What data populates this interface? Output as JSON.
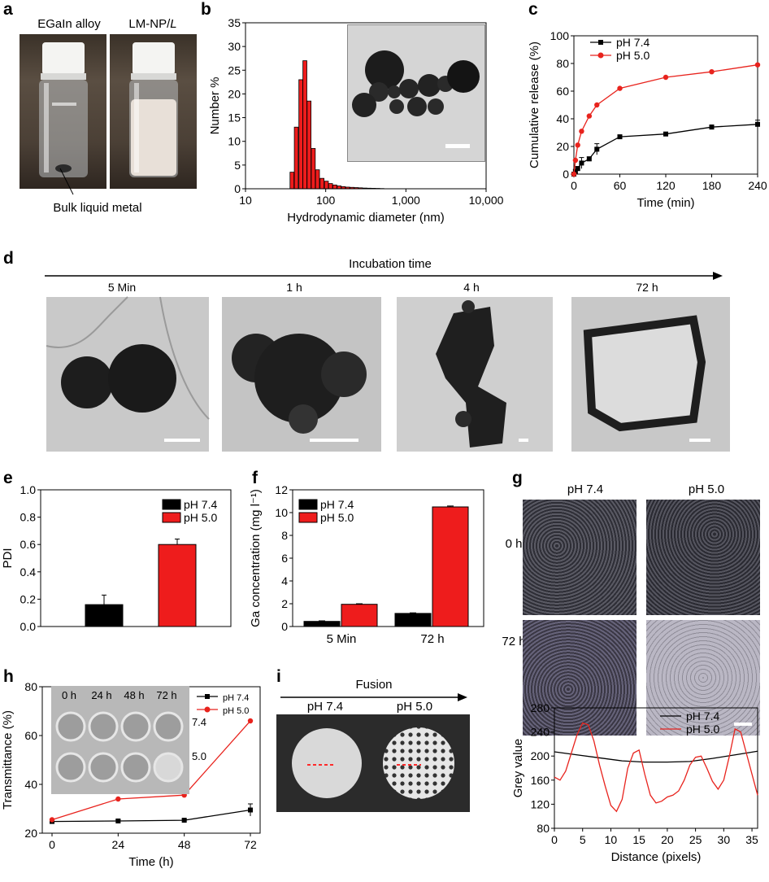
{
  "panel_letters": {
    "a": "a",
    "b": "b",
    "c": "c",
    "d": "d",
    "e": "e",
    "f": "f",
    "g": "g",
    "h": "h",
    "i": "i"
  },
  "panel_a": {
    "left_label": "EGaIn alloy",
    "right_label": "LM-NP/",
    "right_label_italic": "L",
    "callout": "Bulk liquid metal"
  },
  "panel_d": {
    "axis_title": "Incubation time",
    "times": [
      "5 Min",
      "1 h",
      "4 h",
      "72 h"
    ]
  },
  "panel_g": {
    "col_labels": [
      "pH 7.4",
      "pH 5.0"
    ],
    "row_labels": [
      "0 h",
      "72 h"
    ]
  },
  "panel_i": {
    "title": "Fusion",
    "labels": [
      "pH 7.4",
      "pH 5.0"
    ]
  },
  "panel_h": {
    "inset_times": [
      "0 h",
      "24 h",
      "48 h",
      "72 h"
    ],
    "inset_rows": [
      "7.4",
      "5.0"
    ]
  },
  "colors": {
    "ph74": "#000000",
    "ph50": "#e8231d",
    "bar_red": "#ee1c1c"
  },
  "chart_data": [
    {
      "id": "b",
      "type": "bar",
      "xlabel": "Hydrodynamic diameter (nm)",
      "ylabel": "Number %",
      "x_scale": "log",
      "xlim": [
        10,
        10000
      ],
      "ylim": [
        0,
        35
      ],
      "xticks": [
        10,
        100,
        1000,
        10000
      ],
      "xtick_labels": [
        "10",
        "100",
        "1,000",
        "10,000"
      ],
      "yticks": [
        0,
        5,
        10,
        15,
        20,
        25,
        30,
        35
      ],
      "categories": [
        38,
        43,
        49,
        55,
        62,
        70,
        79,
        90,
        102,
        115,
        130,
        147,
        166,
        188,
        213,
        241,
        272,
        308,
        348,
        394,
        445,
        503
      ],
      "values": [
        3.5,
        13,
        23,
        27,
        18.5,
        8.5,
        4,
        2.2,
        1.6,
        1.1,
        0.8,
        0.6,
        0.45,
        0.35,
        0.3,
        0.25,
        0.2,
        0.15,
        0.12,
        0.1,
        0.08,
        0.05
      ]
    },
    {
      "id": "c",
      "type": "line",
      "xlabel": "Time (min)",
      "ylabel": "Cumulative release (%)",
      "xlim": [
        0,
        240
      ],
      "ylim": [
        0,
        100
      ],
      "xticks": [
        0,
        60,
        120,
        180,
        240
      ],
      "yticks": [
        0,
        20,
        40,
        60,
        80,
        100
      ],
      "series": [
        {
          "name": "pH 7.4",
          "color": "#000000",
          "marker": "square",
          "x": [
            0,
            2,
            5,
            10,
            20,
            30,
            60,
            120,
            180,
            240
          ],
          "y": [
            0,
            2,
            4,
            8,
            11,
            18,
            27,
            29,
            34,
            36
          ],
          "err": [
            0,
            1,
            1.5,
            4,
            1.5,
            4,
            1,
            1,
            1.5,
            3
          ]
        },
        {
          "name": "pH 5.0",
          "color": "#e8231d",
          "marker": "circle",
          "x": [
            0,
            2,
            5,
            10,
            20,
            30,
            60,
            120,
            180,
            240
          ],
          "y": [
            0,
            10,
            21,
            31,
            42,
            50,
            62,
            70,
            74,
            79
          ],
          "err": [
            0,
            0,
            0,
            0,
            0,
            0,
            0,
            0,
            0,
            0
          ]
        }
      ]
    },
    {
      "id": "e",
      "type": "bar",
      "ylabel": "PDI",
      "ylim": [
        0,
        1.0
      ],
      "yticks": [
        0,
        0.2,
        0.4,
        0.6,
        0.8,
        1.0
      ],
      "ytick_labels": [
        "0.0",
        "0.2",
        "0.4",
        "0.6",
        "0.8",
        "1.0"
      ],
      "series": [
        {
          "name": "pH 7.4",
          "color": "#000000",
          "values": [
            0.16
          ],
          "err": [
            0.07
          ]
        },
        {
          "name": "pH 5.0",
          "color": "#ee1c1c",
          "values": [
            0.6
          ],
          "err": [
            0.04
          ]
        }
      ]
    },
    {
      "id": "f",
      "type": "bar",
      "ylabel": "Ga concentration (mg l⁻¹)",
      "ylim": [
        0,
        12
      ],
      "yticks": [
        0,
        2,
        4,
        6,
        8,
        10,
        12
      ],
      "categories": [
        "5 Min",
        "72 h"
      ],
      "series": [
        {
          "name": "pH 7.4",
          "color": "#000000",
          "values": [
            0.45,
            1.15
          ],
          "err": [
            0.05,
            0.05
          ]
        },
        {
          "name": "pH 5.0",
          "color": "#ee1c1c",
          "values": [
            1.95,
            10.5
          ],
          "err": [
            0.05,
            0.08
          ]
        }
      ]
    },
    {
      "id": "g",
      "type": "line",
      "xlabel": "Distance (pixels)",
      "ylabel": "Grey value",
      "xlim": [
        0,
        36
      ],
      "ylim": [
        80,
        280
      ],
      "xticks": [
        0,
        5,
        10,
        15,
        20,
        25,
        30,
        35
      ],
      "yticks": [
        80,
        120,
        160,
        200,
        240,
        280
      ],
      "series": [
        {
          "name": "pH 7.4",
          "color": "#000000",
          "x": [
            0,
            4,
            8,
            12,
            16,
            20,
            24,
            28,
            32,
            36
          ],
          "y": [
            207,
            202,
            197,
            192,
            190,
            190,
            191,
            196,
            202,
            208
          ]
        },
        {
          "name": "pH 5.0",
          "color": "#e8231d",
          "x": [
            0,
            1,
            2,
            3,
            4,
            5,
            6,
            7,
            8,
            9,
            10,
            11,
            12,
            13,
            14,
            15,
            16,
            17,
            18,
            19,
            20,
            21,
            22,
            23,
            24,
            25,
            26,
            27,
            28,
            29,
            30,
            31,
            32,
            33,
            34,
            35,
            36
          ],
          "y": [
            165,
            160,
            175,
            205,
            235,
            255,
            252,
            225,
            185,
            150,
            118,
            108,
            128,
            180,
            205,
            210,
            170,
            135,
            122,
            125,
            132,
            135,
            142,
            160,
            185,
            198,
            200,
            180,
            158,
            145,
            160,
            200,
            245,
            240,
            205,
            170,
            135
          ]
        }
      ]
    },
    {
      "id": "h",
      "type": "line",
      "xlabel": "Time (h)",
      "ylabel": "Transmittance (%)",
      "xlim": [
        0,
        72
      ],
      "ylim": [
        20,
        80
      ],
      "xticks": [
        0,
        24,
        48,
        72
      ],
      "yticks": [
        20,
        40,
        60,
        80
      ],
      "series": [
        {
          "name": "pH 7.4",
          "color": "#000000",
          "marker": "square",
          "x": [
            0,
            24,
            48,
            72
          ],
          "y": [
            24.8,
            25,
            25.3,
            29.5
          ],
          "err": [
            0.5,
            0.5,
            0.5,
            2.5
          ]
        },
        {
          "name": "pH 5.0",
          "color": "#e8231d",
          "marker": "circle",
          "x": [
            0,
            24,
            48,
            72
          ],
          "y": [
            25.5,
            34,
            35.6,
            66
          ],
          "err": [
            0,
            0,
            0,
            0
          ]
        }
      ]
    }
  ]
}
